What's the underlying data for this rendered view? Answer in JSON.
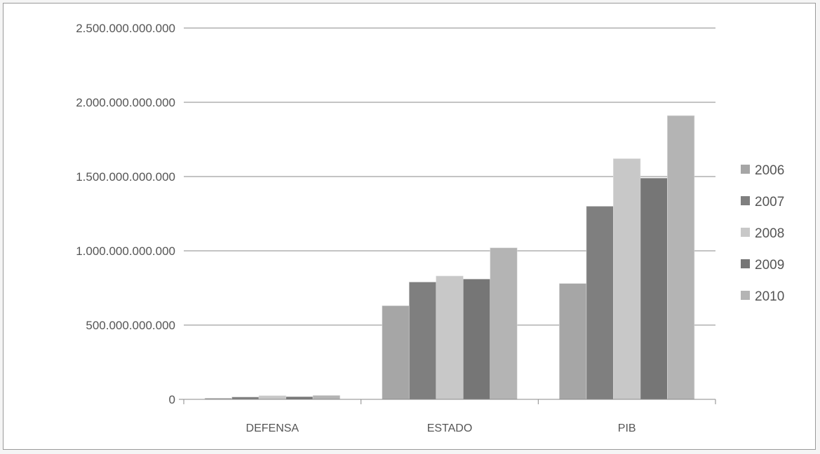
{
  "chart_data": {
    "type": "bar",
    "title": "",
    "xlabel": "",
    "ylabel": "",
    "categories": [
      "DEFENSA",
      "ESTADO",
      "PIB"
    ],
    "series": [
      {
        "name": "2006",
        "values": [
          8000000000,
          630000000000,
          780000000000
        ]
      },
      {
        "name": "2007",
        "values": [
          16000000000,
          790000000000,
          1300000000000
        ]
      },
      {
        "name": "2008",
        "values": [
          24000000000,
          830000000000,
          1620000000000
        ]
      },
      {
        "name": "2009",
        "values": [
          18000000000,
          810000000000,
          1490000000000
        ]
      },
      {
        "name": "2010",
        "values": [
          26000000000,
          1020000000000,
          1910000000000
        ]
      }
    ],
    "ylim": [
      0,
      2500000000000
    ],
    "yticks": [
      0,
      500000000000,
      1000000000000,
      1500000000000,
      2000000000000,
      2500000000000
    ],
    "ytick_labels": [
      "0",
      "500.000.000.000",
      "1.000.000.000.000",
      "1.500.000.000.000",
      "2.000.000.000.000",
      "2.500.000.000.000"
    ],
    "grid": true,
    "legend_position": "right",
    "colors": [
      "#a6a6a6",
      "#7f7f7f",
      "#c8c8c8",
      "#767676",
      "#b4b4b4"
    ]
  }
}
